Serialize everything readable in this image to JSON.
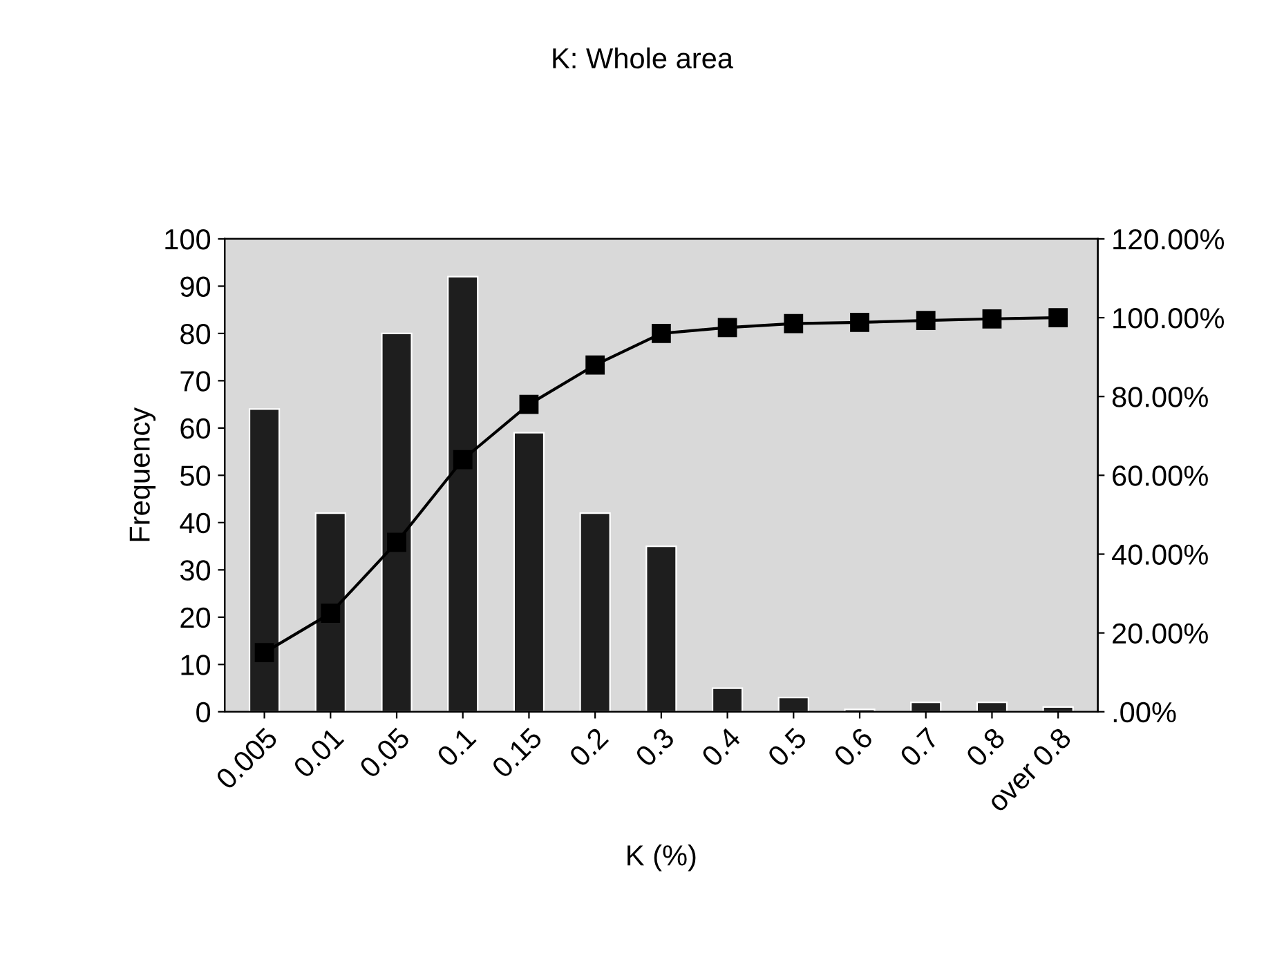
{
  "chart_data": {
    "type": "bar",
    "title": "K: Whole area",
    "xlabel": "K (%)",
    "ylabel": "Frequency",
    "categories": [
      "0.005",
      "0.01",
      "0.05",
      "0.1",
      "0.15",
      "0.2",
      "0.3",
      "0.4",
      "0.5",
      "0.6",
      "0.7",
      "0.8",
      "over 0.8"
    ],
    "series": [
      {
        "color": "#1e1e1e",
        "values": [
          64,
          42,
          80,
          92,
          59,
          42,
          35,
          5,
          3,
          0.5,
          2,
          2,
          1
        ]
      },
      {
        "type": "line",
        "axis": "y2",
        "color": "#000000",
        "marker": "square",
        "values": [
          15,
          25,
          43,
          64,
          78,
          88,
          96,
          97.5,
          98.5,
          98.8,
          99.3,
          99.7,
          100
        ]
      }
    ],
    "ylim": [
      0,
      100
    ],
    "yticks": [
      0,
      10,
      20,
      30,
      40,
      50,
      60,
      70,
      80,
      90,
      100
    ],
    "y2lim": [
      0,
      120
    ],
    "y2ticks": [
      {
        "value": 0,
        "label": ".00%"
      },
      {
        "value": 20,
        "label": "20.00%"
      },
      {
        "value": 40,
        "label": "40.00%"
      },
      {
        "value": 60,
        "label": "60.00%"
      },
      {
        "value": 80,
        "label": "80.00%"
      },
      {
        "value": 100,
        "label": "100.00%"
      },
      {
        "value": 120,
        "label": "120.00%"
      }
    ],
    "grid": false,
    "legend": false
  }
}
